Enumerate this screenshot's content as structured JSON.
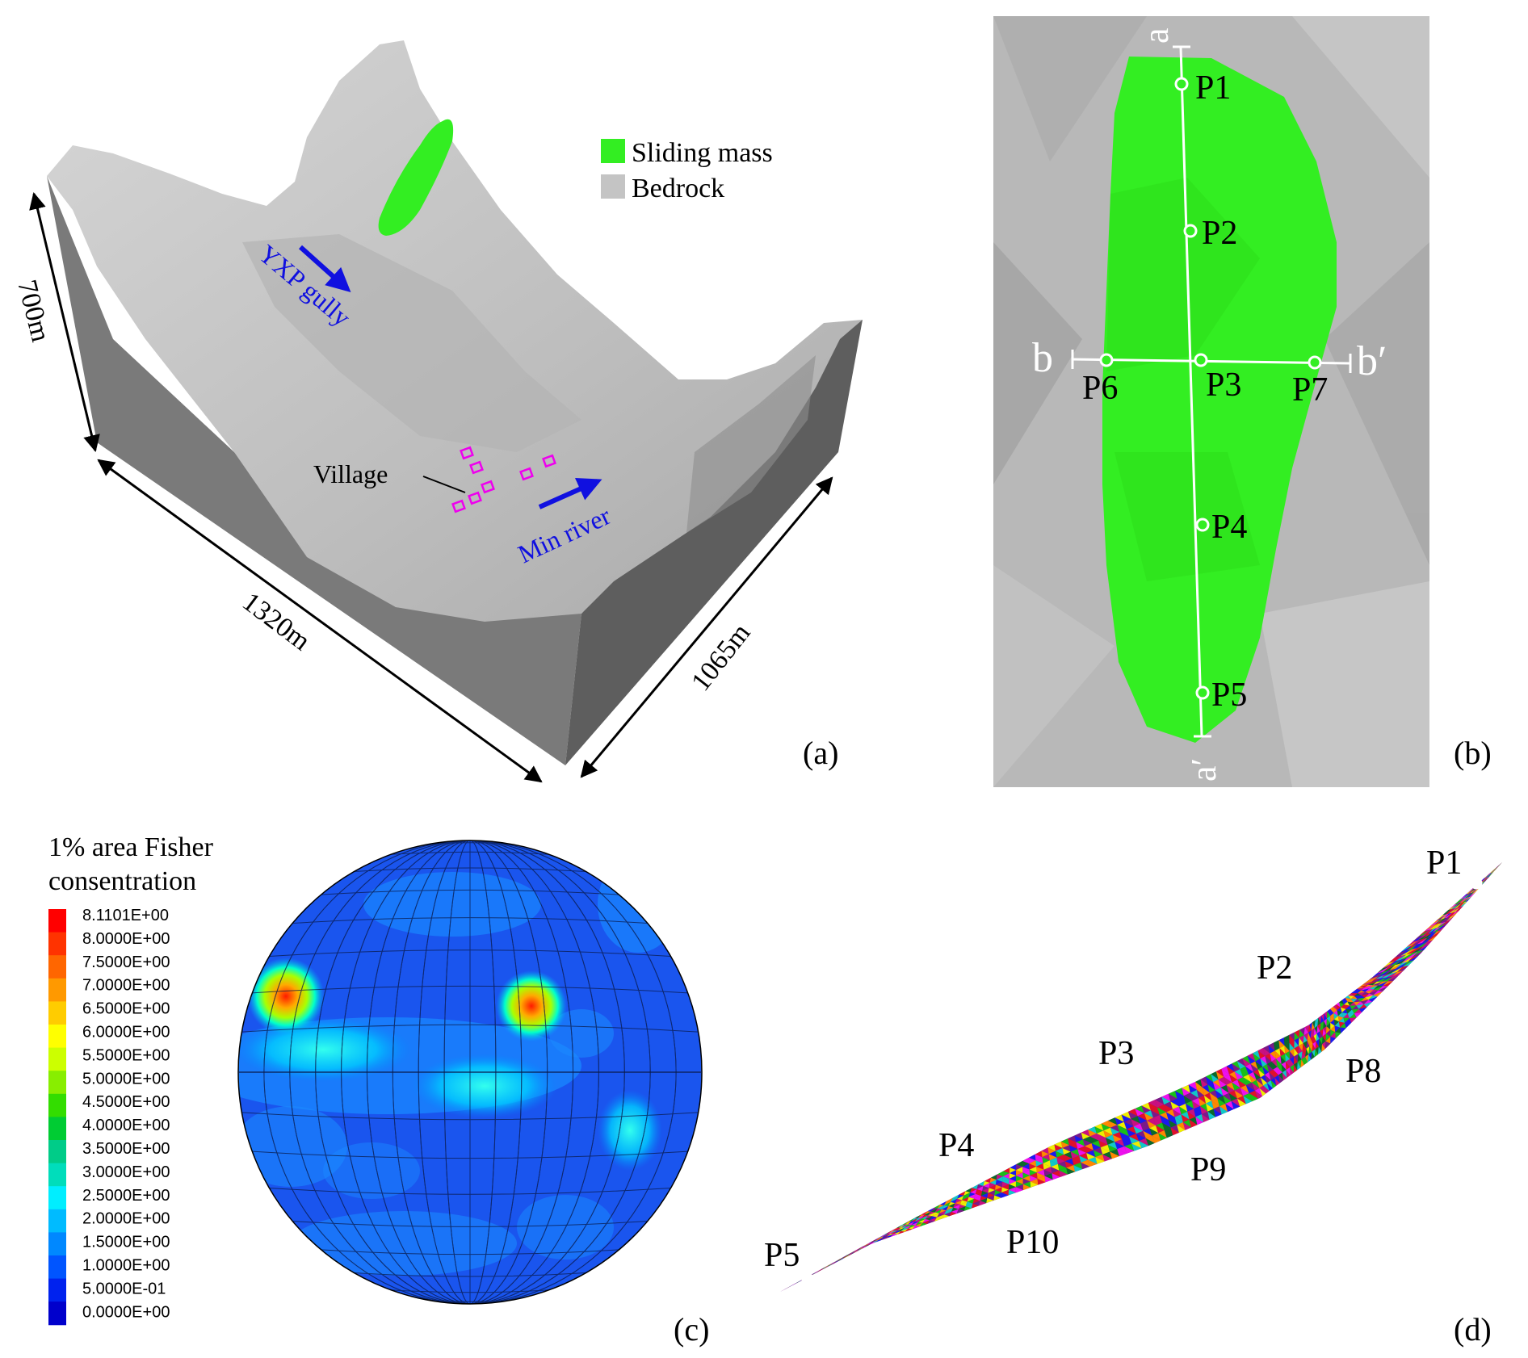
{
  "panel_a": {
    "label": "(a)",
    "legend": [
      {
        "text": "Sliding mass",
        "color": "#33ee22"
      },
      {
        "text": "Bedrock",
        "color": "#c4c4c4"
      }
    ],
    "dimensions": {
      "height": "700m",
      "length": "1320m",
      "width": "1065m"
    },
    "gully_label": "YXP gully",
    "river_label": "Min river",
    "village_label": "Village",
    "colors": {
      "river_text": "#1010e0",
      "village_marker": "#ee00ee"
    }
  },
  "panel_b": {
    "label": "(b)",
    "section_ends": {
      "a": "a",
      "a_prime": "a′",
      "b": "b",
      "b_prime": "b′"
    },
    "points": [
      "P1",
      "P2",
      "P3",
      "P4",
      "P5",
      "P6",
      "P7"
    ]
  },
  "panel_c": {
    "label": "(c)",
    "title_line1": "1% area Fisher",
    "title_line2": "consentration",
    "scale_values": [
      "8.1101E+00",
      "8.0000E+00",
      "7.5000E+00",
      "7.0000E+00",
      "6.5000E+00",
      "6.0000E+00",
      "5.5000E+00",
      "5.0000E+00",
      "4.5000E+00",
      "4.0000E+00",
      "3.5000E+00",
      "3.0000E+00",
      "2.5000E+00",
      "2.0000E+00",
      "1.5000E+00",
      "1.0000E+00",
      "5.0000E-01",
      "0.0000E+00"
    ],
    "scale_colors": [
      "#ff0000",
      "#ff3300",
      "#ff6600",
      "#ff9900",
      "#ffcc00",
      "#ffff00",
      "#ccff00",
      "#88ee00",
      "#33dd00",
      "#00cc33",
      "#00cc88",
      "#00ddbb",
      "#00eeff",
      "#00bbff",
      "#0088ff",
      "#0055ff",
      "#0022ee",
      "#0000cc"
    ]
  },
  "panel_d": {
    "label": "(d)",
    "points": [
      "P1",
      "P2",
      "P3",
      "P4",
      "P5",
      "P8",
      "P9",
      "P10"
    ]
  }
}
